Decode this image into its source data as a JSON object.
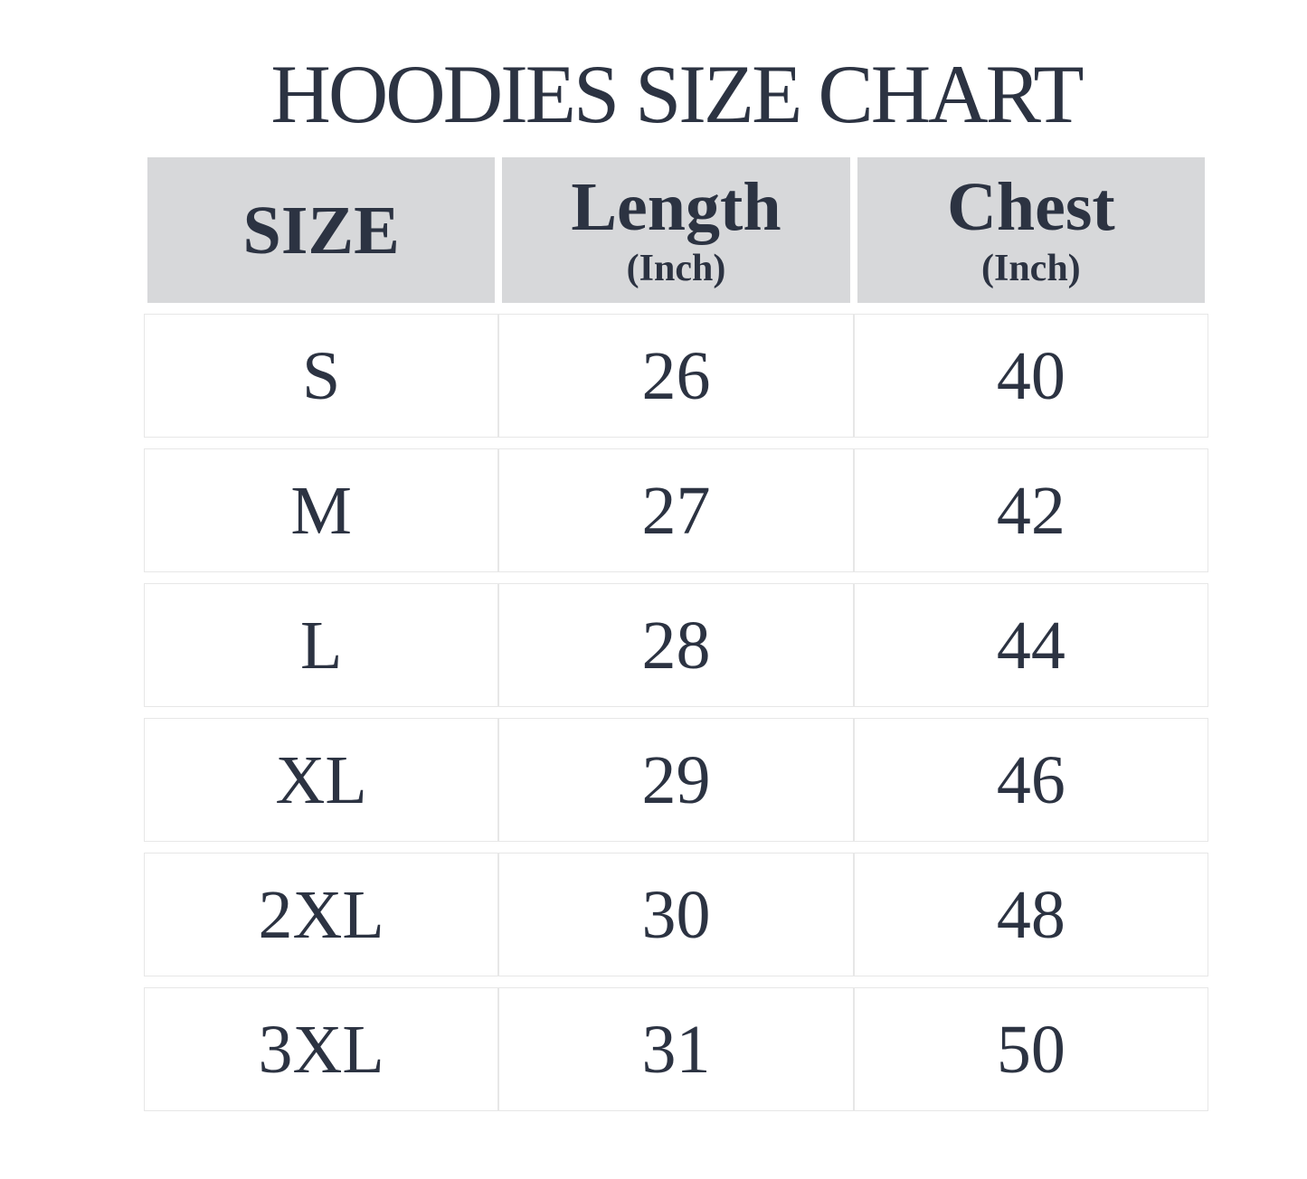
{
  "chart_data": {
    "type": "table",
    "title": "HOODIES SIZE CHART",
    "columns": [
      {
        "label": "SIZE",
        "unit": ""
      },
      {
        "label": "Length",
        "unit": "(Inch)"
      },
      {
        "label": "Chest",
        "unit": "(Inch)"
      }
    ],
    "rows": [
      [
        "S",
        "26",
        "40"
      ],
      [
        "M",
        "27",
        "42"
      ],
      [
        "L",
        "28",
        "44"
      ],
      [
        "XL",
        "29",
        "46"
      ],
      [
        "2XL",
        "30",
        "48"
      ],
      [
        "3XL",
        "31",
        "50"
      ]
    ],
    "layout": {
      "grid": "off",
      "header_position": "top-row"
    }
  },
  "colors": {
    "text": "#2c3342",
    "header_bg": "#d7d8da",
    "cell_border": "#e7e7e7",
    "page_bg": "#ffffff"
  }
}
